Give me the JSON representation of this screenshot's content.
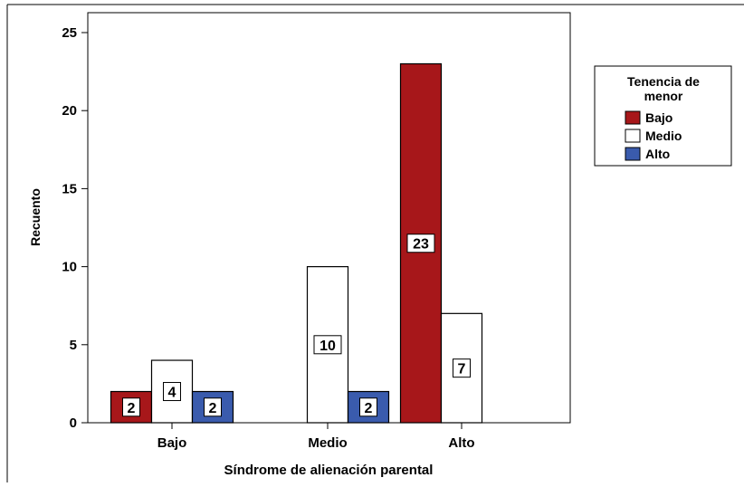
{
  "chart_data": {
    "type": "bar",
    "title": "",
    "xlabel": "Síndrome de alienación parental",
    "ylabel": "Recuento",
    "categories": [
      "Bajo",
      "Medio",
      "Alto"
    ],
    "ylim": [
      0,
      25
    ],
    "yticks": [
      0,
      5,
      10,
      15,
      20,
      25
    ],
    "grid": false,
    "legend": {
      "title": "Tenencia de menor",
      "placement": "right"
    },
    "series": [
      {
        "name": "Bajo",
        "color": "#a7171a",
        "values": [
          2,
          null,
          23
        ]
      },
      {
        "name": "Medio",
        "color": "#ffffff",
        "values": [
          4,
          10,
          7
        ]
      },
      {
        "name": "Alto",
        "color": "#3a5bad",
        "values": [
          2,
          2,
          null
        ]
      }
    ]
  }
}
